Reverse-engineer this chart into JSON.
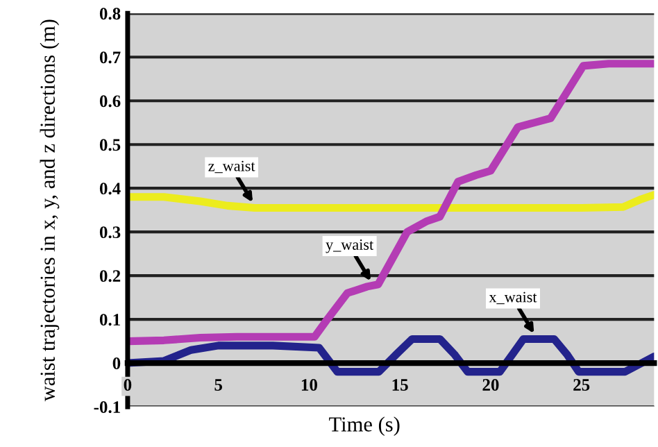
{
  "chart_data": {
    "type": "line",
    "xlabel": "Time (s)",
    "ylabel": "waist trajectories in x, y, and z directions (m)",
    "xlim": [
      0,
      29
    ],
    "xticks": [
      0,
      5,
      10,
      15,
      20,
      25
    ],
    "ylim": [
      -0.1,
      0.8
    ],
    "yticks": [
      -0.1,
      0,
      0.1,
      0.2,
      0.3,
      0.4,
      0.5,
      0.6,
      0.7,
      0.8
    ],
    "grid": "y",
    "legend": false,
    "series": [
      {
        "color": "#ecec1e",
        "x": [
          0,
          2,
          4,
          5.5,
          7,
          10,
          15,
          20,
          25,
          27.3,
          28.3,
          29
        ],
        "values": [
          0.38,
          0.38,
          0.37,
          0.36,
          0.355,
          0.355,
          0.355,
          0.355,
          0.355,
          0.357,
          0.375,
          0.385
        ]
      },
      {
        "color": "#b43cb4",
        "x": [
          0,
          2,
          4,
          6,
          8,
          10.3,
          11,
          12.1,
          13.2,
          13.8,
          14.6,
          15.4,
          16.5,
          17.2,
          18.2,
          19.2,
          20,
          21.5,
          22.4,
          23.3,
          24.2,
          25.1,
          26.5,
          29
        ],
        "values": [
          0.05,
          0.052,
          0.058,
          0.06,
          0.06,
          0.06,
          0.1,
          0.16,
          0.175,
          0.18,
          0.24,
          0.3,
          0.325,
          0.335,
          0.415,
          0.43,
          0.44,
          0.54,
          0.55,
          0.56,
          0.62,
          0.68,
          0.685,
          0.685
        ]
      },
      {
        "color": "#23238c",
        "x": [
          0,
          2,
          3.5,
          5,
          8,
          10.55,
          11.55,
          13.84,
          14.8,
          15.67,
          17.2,
          18.0,
          18.73,
          20.5,
          21.2,
          21.8,
          23.5,
          24.2,
          24.85,
          27.4,
          29
        ],
        "values": [
          0,
          0.005,
          0.03,
          0.04,
          0.04,
          0.035,
          -0.02,
          -0.02,
          0.02,
          0.055,
          0.055,
          0.02,
          -0.02,
          -0.02,
          0.02,
          0.055,
          0.055,
          0.02,
          -0.02,
          -0.02,
          0.015
        ]
      }
    ],
    "annotations": [
      {
        "text": "z_waist",
        "x": 7,
        "y": 0.36
      },
      {
        "text": "y_waist",
        "x": 13.5,
        "y": 0.18
      },
      {
        "text": "x_waist",
        "x": 22.5,
        "y": 0.06
      }
    ]
  }
}
